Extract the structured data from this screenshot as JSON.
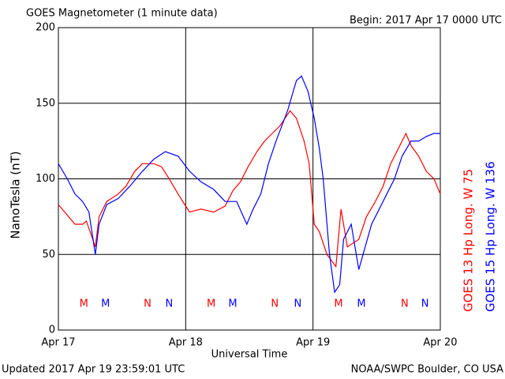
{
  "chart_data": {
    "type": "line",
    "title": "GOES Magnetometer (1 minute data)",
    "subtitle": "Begin:  2017 Apr 17 0000 UTC",
    "y_label": "NanoTesla (nT)",
    "x_label": "Universal Time",
    "footer_left": "Updated 2017 Apr 19 23:59:01 UTC",
    "footer_right": "NOAA/SWPC Boulder, CO USA",
    "xlim": [
      0,
      3
    ],
    "xticks": [
      {
        "value": 0,
        "label": "Apr 17"
      },
      {
        "value": 1,
        "label": "Apr 18"
      },
      {
        "value": 2,
        "label": "Apr 19"
      },
      {
        "value": 3,
        "label": "Apr 20"
      }
    ],
    "ylim": [
      0,
      200
    ],
    "yticks": [
      0,
      50,
      100,
      150,
      200
    ],
    "grid": true,
    "series": [
      {
        "name": "GOES 13 Hp  Long. W 75",
        "color": "#ff0000",
        "x": [
          0,
          0.13,
          0.19,
          0.22,
          0.29,
          0.32,
          0.38,
          0.47,
          0.53,
          0.6,
          0.66,
          0.75,
          0.81,
          0.87,
          0.94,
          1.0,
          1.03,
          1.12,
          1.22,
          1.31,
          1.37,
          1.43,
          1.49,
          1.56,
          1.62,
          1.68,
          1.74,
          1.82,
          1.87,
          1.93,
          1.97,
          2.01,
          2.05,
          2.11,
          2.18,
          2.22,
          2.27,
          2.36,
          2.42,
          2.49,
          2.55,
          2.61,
          2.67,
          2.73,
          2.77,
          2.83,
          2.89,
          2.95,
          3.0
        ],
        "values": [
          83,
          70,
          70,
          72,
          55,
          75,
          85,
          90,
          95,
          105,
          110,
          110,
          108,
          100,
          90,
          82,
          78,
          80,
          78,
          82,
          92,
          98,
          108,
          118,
          125,
          130,
          135,
          145,
          140,
          125,
          110,
          70,
          65,
          50,
          42,
          80,
          55,
          60,
          75,
          85,
          95,
          110,
          120,
          130,
          122,
          115,
          105,
          100,
          90
        ]
      },
      {
        "name": "GOES 15 Hp  Long. W 136",
        "color": "#0000ff",
        "x": [
          0,
          0.07,
          0.13,
          0.19,
          0.24,
          0.29,
          0.32,
          0.38,
          0.47,
          0.56,
          0.66,
          0.75,
          0.84,
          0.94,
          1.03,
          1.12,
          1.22,
          1.31,
          1.4,
          1.48,
          1.53,
          1.59,
          1.65,
          1.71,
          1.8,
          1.87,
          1.91,
          1.96,
          2.01,
          2.05,
          2.08,
          2.13,
          2.17,
          2.21,
          2.24,
          2.3,
          2.36,
          2.41,
          2.46,
          2.52,
          2.58,
          2.64,
          2.7,
          2.77,
          2.83,
          2.89,
          2.95,
          3.0
        ],
        "values": [
          110,
          100,
          90,
          85,
          78,
          50,
          70,
          83,
          87,
          95,
          105,
          113,
          118,
          115,
          105,
          98,
          93,
          85,
          85,
          70,
          80,
          90,
          110,
          125,
          145,
          165,
          168,
          158,
          140,
          120,
          100,
          50,
          25,
          30,
          60,
          70,
          40,
          55,
          70,
          80,
          90,
          100,
          115,
          125,
          125,
          128,
          130,
          130
        ]
      }
    ],
    "markers": [
      {
        "label": "M",
        "x": 0.2,
        "color": "#ff0000"
      },
      {
        "label": "M",
        "x": 0.37,
        "color": "#0000ff"
      },
      {
        "label": "N",
        "x": 0.7,
        "color": "#ff0000"
      },
      {
        "label": "N",
        "x": 0.87,
        "color": "#0000ff"
      },
      {
        "label": "M",
        "x": 1.2,
        "color": "#ff0000"
      },
      {
        "label": "M",
        "x": 1.37,
        "color": "#0000ff"
      },
      {
        "label": "N",
        "x": 1.7,
        "color": "#ff0000"
      },
      {
        "label": "N",
        "x": 1.88,
        "color": "#0000ff"
      },
      {
        "label": "M",
        "x": 2.2,
        "color": "#ff0000"
      },
      {
        "label": "M",
        "x": 2.38,
        "color": "#0000ff"
      },
      {
        "label": "N",
        "x": 2.72,
        "color": "#ff0000"
      },
      {
        "label": "N",
        "x": 2.88,
        "color": "#0000ff"
      }
    ]
  }
}
